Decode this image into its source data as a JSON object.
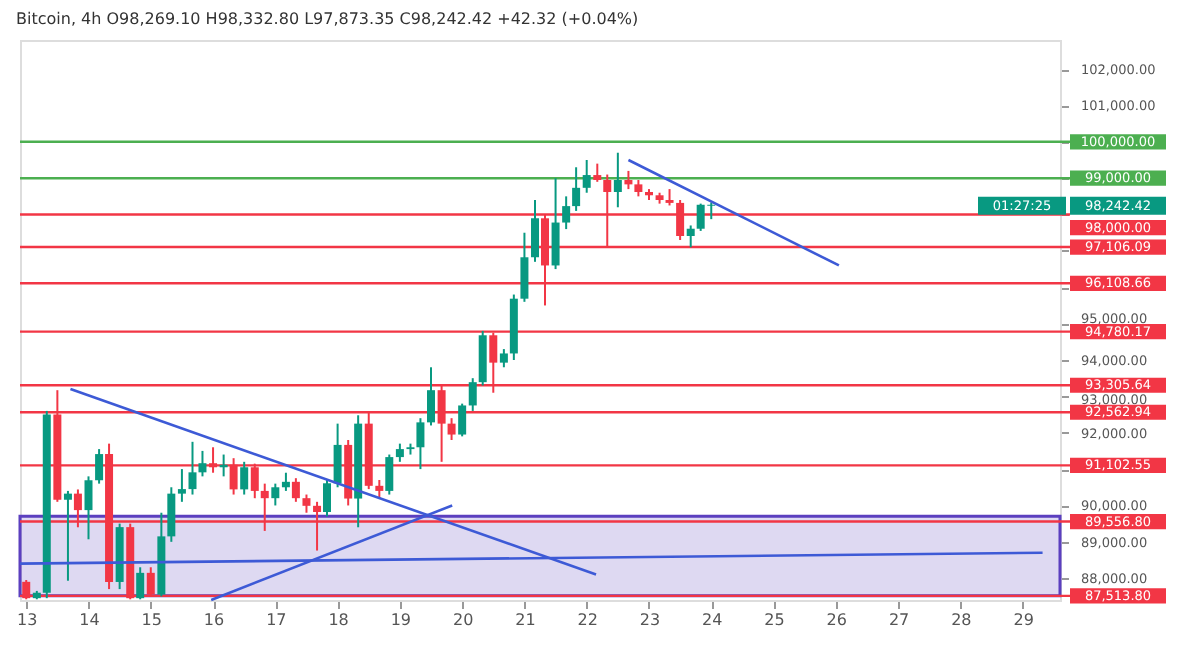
{
  "chart_data": {
    "type": "candlestick",
    "title": "Bitcoin, 4h  O98,269.10 H98,332.80 L97,873.35 C98,242.42 +42.32 (+0.04%)",
    "x": [
      13,
      13.17,
      13.33,
      13.5,
      13.67,
      13.83,
      14,
      14.17,
      14.33,
      14.5,
      14.67,
      14.83,
      15,
      15.17,
      15.33,
      15.5,
      15.67,
      15.83,
      16,
      16.17,
      16.33,
      16.5,
      16.67,
      16.83,
      17,
      17.17,
      17.33,
      17.5,
      17.67,
      17.83,
      18,
      18.17,
      18.33,
      18.5,
      18.67,
      18.83,
      19,
      19.17,
      19.33,
      19.5,
      19.67,
      19.83,
      20,
      20.17,
      20.33,
      20.5,
      20.67,
      20.83,
      21,
      21.17,
      21.33,
      21.5,
      21.67,
      21.83,
      22,
      22.17,
      22.33,
      22.5,
      22.67,
      22.83,
      23,
      23.17,
      23.33,
      23.5,
      23.67,
      23.83,
      24
    ],
    "ohlc": [
      [
        87900,
        87950,
        87420,
        87450
      ],
      [
        87450,
        87650,
        87420,
        87600
      ],
      [
        87600,
        92600,
        87450,
        92500
      ],
      [
        92500,
        93170,
        90100,
        90157
      ],
      [
        90157,
        90400,
        87930,
        90325
      ],
      [
        90325,
        90440,
        89400,
        89872
      ],
      [
        89872,
        90800,
        89070,
        90693
      ],
      [
        90693,
        91550,
        90600,
        91413
      ],
      [
        91413,
        91700,
        87700,
        87896
      ],
      [
        87896,
        89500,
        87700,
        89404
      ],
      [
        89404,
        89500,
        87420,
        87450
      ],
      [
        87450,
        88300,
        87420,
        88147
      ],
      [
        88147,
        88300,
        87500,
        87550
      ],
      [
        87550,
        89800,
        87500,
        89150
      ],
      [
        89150,
        90500,
        89000,
        90325
      ],
      [
        90325,
        91000,
        90100,
        90450
      ],
      [
        90450,
        91750,
        90300,
        90911
      ],
      [
        90911,
        91500,
        90800,
        91162
      ],
      [
        91162,
        91600,
        90900,
        91050
      ],
      [
        91050,
        91400,
        90800,
        91120
      ],
      [
        91120,
        91300,
        90300,
        90442
      ],
      [
        90442,
        91200,
        90300,
        91050
      ],
      [
        91050,
        91150,
        90200,
        90400
      ],
      [
        90400,
        90600,
        89300,
        90200
      ],
      [
        90200,
        90600,
        90000,
        90500
      ],
      [
        90500,
        90900,
        90400,
        90650
      ],
      [
        90650,
        90750,
        90100,
        90200
      ],
      [
        90200,
        90300,
        89800,
        89990
      ],
      [
        89990,
        90100,
        88760,
        89820
      ],
      [
        89820,
        90700,
        89700,
        90610
      ],
      [
        90610,
        92250,
        90500,
        91665
      ],
      [
        91665,
        91800,
        90000,
        90190
      ],
      [
        90190,
        92480,
        89400,
        92250
      ],
      [
        92250,
        92550,
        90450,
        90540
      ],
      [
        90540,
        90700,
        90200,
        90400
      ],
      [
        90400,
        91400,
        90300,
        91330
      ],
      [
        91330,
        91700,
        91200,
        91550
      ],
      [
        91550,
        91700,
        91400,
        91600
      ],
      [
        91600,
        92400,
        91000,
        92285
      ],
      [
        92285,
        93800,
        92200,
        93170
      ],
      [
        93170,
        93300,
        91200,
        92250
      ],
      [
        92250,
        92400,
        91800,
        91950
      ],
      [
        91950,
        92800,
        91900,
        92750
      ],
      [
        92750,
        93500,
        92600,
        93390
      ],
      [
        93390,
        94800,
        93300,
        94680
      ],
      [
        94680,
        94750,
        93100,
        93927
      ],
      [
        93927,
        94300,
        93800,
        94180
      ],
      [
        94180,
        95800,
        94000,
        95686
      ],
      [
        95686,
        97500,
        95600,
        96825
      ],
      [
        96825,
        98400,
        96700,
        97897
      ],
      [
        97897,
        98000,
        95500,
        96600
      ],
      [
        96600,
        99000,
        96500,
        97780
      ],
      [
        97780,
        98500,
        97600,
        98232
      ],
      [
        98232,
        99300,
        98100,
        98735
      ],
      [
        98735,
        99500,
        98600,
        99086
      ],
      [
        99086,
        99400,
        98900,
        98950
      ],
      [
        98950,
        99100,
        97100,
        98620
      ],
      [
        98620,
        99700,
        98200,
        98950
      ],
      [
        98950,
        99200,
        98700,
        98830
      ],
      [
        98830,
        98950,
        98500,
        98620
      ],
      [
        98620,
        98700,
        98400,
        98530
      ],
      [
        98530,
        98600,
        98300,
        98400
      ],
      [
        98400,
        98700,
        98250,
        98320
      ],
      [
        98320,
        98400,
        97300,
        97410
      ],
      [
        97410,
        97700,
        97100,
        97610
      ],
      [
        97610,
        98300,
        97550,
        98269
      ],
      [
        98269,
        98332,
        97873,
        98242.42
      ]
    ],
    "colors": [
      "#f23645",
      "#089981",
      "#089981",
      "#f23645",
      "#089981",
      "#f23645",
      "#089981",
      "#089981",
      "#f23645",
      "#089981",
      "#f23645",
      "#089981",
      "#f23645",
      "#089981",
      "#089981",
      "#089981",
      "#089981",
      "#089981",
      "#f23645",
      "#089981",
      "#f23645",
      "#089981",
      "#f23645",
      "#f23645",
      "#089981",
      "#089981",
      "#f23645",
      "#f23645",
      "#f23645",
      "#089981",
      "#089981",
      "#f23645",
      "#089981",
      "#f23645",
      "#f23645",
      "#089981",
      "#089981",
      "#089981",
      "#089981",
      "#089981",
      "#f23645",
      "#f23645",
      "#089981",
      "#089981",
      "#089981",
      "#f23645",
      "#089981",
      "#089981",
      "#089981",
      "#089981",
      "#f23645",
      "#089981",
      "#089981",
      "#089981",
      "#089981",
      "#f23645",
      "#f23645",
      "#089981",
      "#f23645",
      "#f23645",
      "#f23645",
      "#f23645",
      "#f23645",
      "#f23645",
      "#089981",
      "#089981",
      "#089981"
    ],
    "series": [
      {
        "type": "line",
        "color": "#3d5ad6",
        "x": [
          13.71,
          22.15
        ],
        "values": [
          93200,
          88100
        ]
      },
      {
        "type": "line",
        "color": "#3d5ad6",
        "x": [
          15.97,
          19.84
        ],
        "values": [
          87400,
          90000
        ]
      },
      {
        "type": "line",
        "color": "#3d5ad6",
        "x": [
          12.9,
          29.32
        ],
        "values": [
          88400,
          88700
        ]
      },
      {
        "type": "line",
        "color": "#3d5ad6",
        "x": [
          22.67,
          26.05
        ],
        "values": [
          99500,
          96600
        ]
      }
    ],
    "bands": [
      {
        "axis": "y",
        "from": 87513.8,
        "to": 89700,
        "color": "#5b3fbf"
      }
    ],
    "ref_lines": [
      {
        "axis": "y",
        "value": 100000,
        "label": "100,000.00",
        "color": "#4caf50"
      },
      {
        "axis": "y",
        "value": 99000,
        "label": "99,000.00",
        "color": "#4caf50"
      },
      {
        "axis": "y",
        "value": 98000,
        "label": "98,000.00",
        "color": "#f23645"
      },
      {
        "axis": "y",
        "value": 97106.09,
        "label": "97,106.09",
        "color": "#f23645"
      },
      {
        "axis": "y",
        "value": 96108.66,
        "label": "96,108.66",
        "color": "#f23645"
      },
      {
        "axis": "y",
        "value": 94780.17,
        "label": "94,780.17",
        "color": "#f23645"
      },
      {
        "axis": "y",
        "value": 93305.64,
        "label": "93,305.64",
        "color": "#f23645"
      },
      {
        "axis": "y",
        "value": 92562.94,
        "label": "92,562.94",
        "color": "#f23645"
      },
      {
        "axis": "y",
        "value": 91102.55,
        "label": "91,102.55",
        "color": "#f23645"
      },
      {
        "axis": "y",
        "value": 89556.8,
        "label": "89,556.80",
        "color": "#f23645"
      },
      {
        "axis": "y",
        "value": 87513.8,
        "label": "87,513.80",
        "color": "#f23645"
      }
    ],
    "annotations": [
      "98,242.42",
      "01:27:25"
    ],
    "xlim": [
      12.9,
      29.6
    ],
    "xticks": [
      13,
      14,
      15,
      16,
      17,
      18,
      19,
      20,
      21,
      22,
      23,
      24,
      25,
      26,
      27,
      28,
      29
    ],
    "ylim": [
      87400,
      102800
    ],
    "yticks": [
      {
        "value": 102000,
        "label": "102,000.00"
      },
      {
        "value": 101000,
        "label": "101,000.00"
      },
      {
        "value": 100000,
        "label": null
      },
      {
        "value": 99000,
        "label": null
      },
      {
        "value": 98000,
        "label": null
      },
      {
        "value": 97000,
        "label": null
      },
      {
        "value": 96000,
        "label": null
      },
      {
        "value": 95000,
        "label": "95,000.00"
      },
      {
        "value": 94000,
        "label": "94,000.00"
      },
      {
        "value": 93000,
        "label": "93,000.00"
      },
      {
        "value": 92000,
        "label": "92,000.00"
      },
      {
        "value": 91000,
        "label": null
      },
      {
        "value": 90000,
        "label": "90,000.00"
      },
      {
        "value": 89000,
        "label": "89,000.00"
      },
      {
        "value": 88000,
        "label": "88,000.00"
      }
    ],
    "grid": false
  }
}
